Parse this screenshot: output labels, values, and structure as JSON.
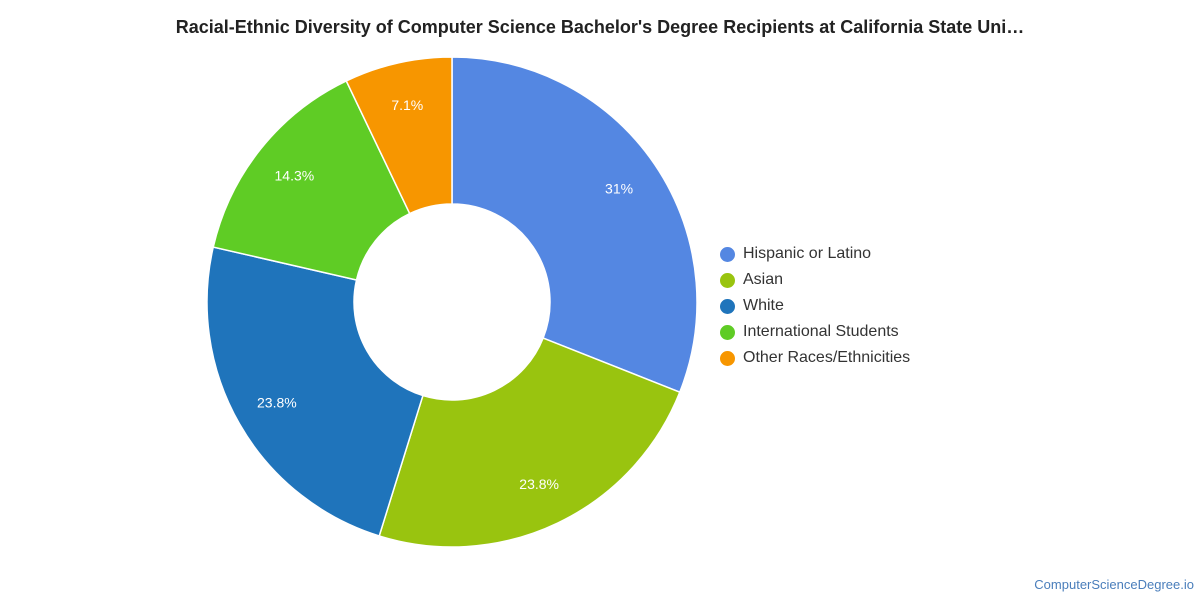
{
  "chart_data": {
    "type": "pie",
    "title": "Racial-Ethnic Diversity of Computer Science Bachelor's Degree Recipients at California State Uni…",
    "donut": true,
    "legend_position": "right",
    "slices": [
      {
        "name": "Hispanic or Latino",
        "value": 31,
        "label": "31%",
        "color": "#5487e2"
      },
      {
        "name": "Asian",
        "value": 23.8,
        "label": "23.8%",
        "color": "#99c40f"
      },
      {
        "name": "White",
        "value": 23.8,
        "label": "23.8%",
        "color": "#1f74bb"
      },
      {
        "name": "International Students",
        "value": 14.3,
        "label": "14.3%",
        "color": "#5fcc25"
      },
      {
        "name": "Other Races/Ethnicities",
        "value": 7.1,
        "label": "7.1%",
        "color": "#f79600"
      }
    ]
  },
  "credit": "ComputerScienceDegree.io"
}
